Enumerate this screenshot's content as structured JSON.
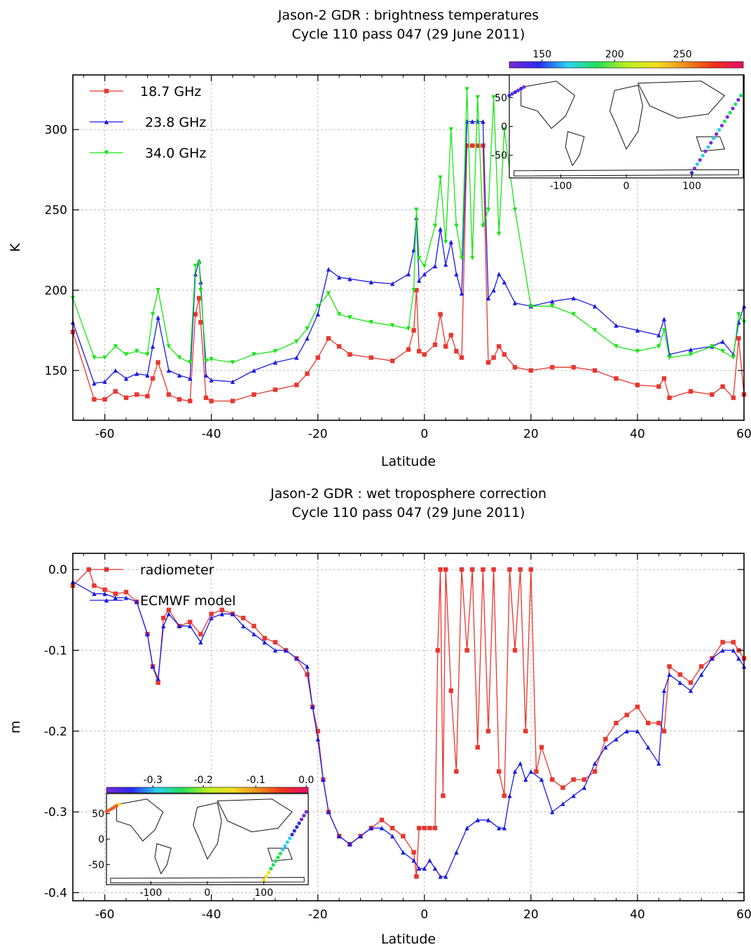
{
  "chart_data": [
    {
      "type": "line",
      "title": "Jason-2 GDR : brightness temperatures",
      "subtitle": "Cycle 110 pass 047 (29 June 2011)",
      "xlabel": "Latitude",
      "ylabel": "K",
      "xlim": [
        -66,
        60
      ],
      "ylim": [
        119,
        334
      ],
      "xticks": [
        -60,
        -40,
        -20,
        0,
        20,
        40,
        60
      ],
      "yticks": [
        150,
        200,
        250,
        300
      ],
      "grid": true,
      "legend_position": "top-left",
      "series": [
        {
          "name": "18.7 GHz",
          "color": "#e8362f",
          "marker": "square",
          "x": [
            -66,
            -62,
            -60,
            -58,
            -56,
            -54,
            -52,
            -51,
            -50,
            -48,
            -46,
            -44,
            -43,
            -42.3,
            -42,
            -41,
            -40,
            -36,
            -32,
            -28,
            -24,
            -22,
            -20,
            -18,
            -16,
            -14,
            -10,
            -6,
            -3,
            -2,
            -1.5,
            -1,
            0,
            2,
            3,
            4,
            5,
            6,
            7,
            8,
            9,
            10,
            11,
            12,
            13,
            14,
            15,
            17,
            20,
            24,
            28,
            32,
            36,
            40,
            44,
            45,
            46,
            50,
            54,
            56,
            58,
            59,
            60
          ],
          "y": [
            174,
            132,
            132,
            137,
            133,
            135,
            134,
            145,
            155,
            135,
            132,
            131,
            185,
            195,
            180,
            133,
            131,
            131,
            135,
            138,
            141,
            148,
            158,
            170,
            165,
            160,
            158,
            156,
            163,
            175,
            200,
            162,
            160,
            166,
            185,
            165,
            172,
            162,
            158,
            290,
            290,
            290,
            290,
            155,
            158,
            165,
            160,
            152,
            150,
            152,
            152,
            150,
            145,
            141,
            140,
            145,
            133,
            137,
            135,
            140,
            133,
            170,
            135
          ]
        },
        {
          "name": "23.8 GHz",
          "color": "#1a1ae6",
          "marker": "triangle",
          "x": [
            -66,
            -62,
            -60,
            -58,
            -56,
            -54,
            -52,
            -51,
            -50,
            -48,
            -46,
            -44,
            -43,
            -42.3,
            -42,
            -41,
            -40,
            -36,
            -32,
            -28,
            -24,
            -22,
            -20,
            -18,
            -16,
            -14,
            -10,
            -6,
            -3,
            -2,
            -1.5,
            -1,
            0,
            2,
            3,
            4,
            5,
            6,
            7,
            8,
            9,
            10,
            11,
            12,
            13,
            14,
            15,
            17,
            20,
            24,
            28,
            32,
            36,
            40,
            44,
            45,
            46,
            50,
            54,
            56,
            58,
            59,
            60
          ],
          "y": [
            180,
            142,
            143,
            150,
            145,
            148,
            147,
            165,
            183,
            150,
            147,
            145,
            210,
            218,
            205,
            147,
            144,
            143,
            150,
            155,
            158,
            170,
            185,
            213,
            208,
            207,
            205,
            204,
            210,
            225,
            245,
            206,
            210,
            215,
            238,
            216,
            230,
            210,
            198,
            305,
            305,
            305,
            305,
            195,
            200,
            210,
            205,
            192,
            190,
            193,
            195,
            190,
            178,
            175,
            172,
            182,
            160,
            163,
            165,
            168,
            160,
            180,
            190
          ]
        },
        {
          "name": "34.0 GHz",
          "color": "#17e614",
          "marker": "triangle-down",
          "x": [
            -66,
            -62,
            -60,
            -58,
            -56,
            -54,
            -52,
            -51,
            -50,
            -48,
            -46,
            -44,
            -43,
            -42.3,
            -42,
            -41,
            -40,
            -36,
            -32,
            -28,
            -24,
            -22,
            -20,
            -18,
            -16,
            -14,
            -10,
            -6,
            -3,
            -2,
            -1.5,
            -1,
            0,
            2,
            3,
            4,
            5,
            6,
            7,
            8,
            9,
            10,
            11,
            12,
            13,
            14,
            15,
            17,
            20,
            24,
            28,
            32,
            36,
            40,
            44,
            45,
            46,
            50,
            54,
            56,
            58,
            59,
            60
          ],
          "y": [
            195,
            158,
            158,
            165,
            160,
            162,
            160,
            185,
            200,
            165,
            158,
            155,
            215,
            217,
            200,
            156,
            157,
            155,
            160,
            162,
            168,
            176,
            190,
            198,
            185,
            183,
            180,
            178,
            176,
            200,
            250,
            220,
            215,
            240,
            270,
            230,
            300,
            240,
            220,
            325,
            220,
            320,
            240,
            250,
            320,
            235,
            300,
            250,
            190,
            190,
            185,
            175,
            165,
            162,
            165,
            175,
            158,
            160,
            165,
            162,
            158,
            185,
            180
          ]
        }
      ],
      "inset": {
        "type": "map",
        "colorbar_ticks": [
          150,
          200,
          250
        ],
        "xticks": [
          -100,
          0,
          100
        ],
        "yticks": [
          50,
          0,
          -50
        ]
      }
    },
    {
      "type": "line",
      "title": "Jason-2 GDR : wet troposphere correction",
      "subtitle": "Cycle 110 pass 047 (29 June 2011)",
      "xlabel": "Latitude",
      "ylabel": "m",
      "xlim": [
        -66,
        60
      ],
      "ylim": [
        -0.41,
        0.02
      ],
      "xticks": [
        -60,
        -40,
        -20,
        0,
        20,
        40,
        60
      ],
      "yticks": [
        0.0,
        -0.1,
        -0.2,
        -0.3,
        -0.4
      ],
      "ytick_labels": [
        "0.0",
        "-0.1",
        "-0.2",
        "-0.3",
        "-0.4"
      ],
      "grid": true,
      "legend_position": "top-left",
      "series": [
        {
          "name": "radiometer",
          "color": "#e8362f",
          "marker": "square",
          "x": [
            -66,
            -63,
            -62,
            -60,
            -58,
            -56,
            -54,
            -52,
            -51,
            -50,
            -49,
            -48,
            -46,
            -44,
            -42,
            -40,
            -38,
            -36,
            -34,
            -32,
            -30,
            -28,
            -26,
            -24,
            -22,
            -21,
            -20,
            -19,
            -18,
            -16,
            -14,
            -12,
            -10,
            -8,
            -6,
            -4,
            -2,
            -1.5,
            -1,
            0,
            1,
            2,
            2.5,
            3,
            3.5,
            4,
            5,
            6,
            7,
            8,
            9,
            10,
            11,
            12,
            13,
            14,
            15,
            16,
            17,
            18,
            19,
            20,
            21,
            22,
            24,
            26,
            28,
            30,
            32,
            34,
            36,
            38,
            40,
            42,
            44,
            45,
            46,
            48,
            50,
            52,
            54,
            56,
            58,
            59,
            60
          ],
          "y": [
            -0.02,
            0.0,
            -0.02,
            -0.025,
            -0.03,
            -0.028,
            -0.04,
            -0.08,
            -0.12,
            -0.14,
            -0.06,
            -0.05,
            -0.07,
            -0.065,
            -0.08,
            -0.055,
            -0.05,
            -0.055,
            -0.06,
            -0.07,
            -0.085,
            -0.09,
            -0.1,
            -0.11,
            -0.13,
            -0.17,
            -0.2,
            -0.26,
            -0.3,
            -0.33,
            -0.34,
            -0.33,
            -0.32,
            -0.31,
            -0.32,
            -0.33,
            -0.35,
            -0.38,
            -0.32,
            -0.32,
            -0.32,
            -0.32,
            -0.1,
            0.0,
            -0.28,
            0.0,
            -0.15,
            -0.25,
            0.0,
            -0.1,
            0.0,
            -0.22,
            0.0,
            -0.2,
            0.0,
            -0.25,
            -0.28,
            0.0,
            -0.1,
            0.0,
            -0.2,
            0.0,
            -0.25,
            -0.22,
            -0.26,
            -0.27,
            -0.26,
            -0.26,
            -0.25,
            -0.21,
            -0.19,
            -0.18,
            -0.17,
            -0.19,
            -0.19,
            -0.2,
            -0.12,
            -0.13,
            -0.14,
            -0.12,
            -0.11,
            -0.09,
            -0.09,
            -0.1,
            -0.11
          ]
        },
        {
          "name": "ECMWF model",
          "color": "#1a1ae6",
          "marker": "triangle",
          "x": [
            -66,
            -62,
            -60,
            -58,
            -56,
            -54,
            -52,
            -51,
            -50,
            -49,
            -48,
            -46,
            -44,
            -42,
            -40,
            -38,
            -36,
            -34,
            -32,
            -30,
            -28,
            -26,
            -24,
            -22,
            -21,
            -20,
            -19,
            -18,
            -16,
            -14,
            -12,
            -10,
            -8,
            -6,
            -4,
            -2,
            -1,
            0,
            1,
            2,
            3,
            4,
            6,
            8,
            10,
            12,
            14,
            15,
            16,
            17,
            18,
            19,
            20,
            22,
            24,
            26,
            28,
            30,
            32,
            34,
            36,
            38,
            40,
            42,
            44,
            45,
            46,
            48,
            50,
            52,
            54,
            56,
            58,
            59,
            60
          ],
          "y": [
            -0.015,
            -0.03,
            -0.03,
            -0.035,
            -0.035,
            -0.04,
            -0.08,
            -0.12,
            -0.135,
            -0.07,
            -0.055,
            -0.07,
            -0.07,
            -0.09,
            -0.06,
            -0.055,
            -0.055,
            -0.07,
            -0.08,
            -0.09,
            -0.1,
            -0.1,
            -0.11,
            -0.12,
            -0.17,
            -0.21,
            -0.26,
            -0.3,
            -0.33,
            -0.34,
            -0.33,
            -0.32,
            -0.32,
            -0.33,
            -0.35,
            -0.36,
            -0.37,
            -0.37,
            -0.36,
            -0.37,
            -0.38,
            -0.38,
            -0.35,
            -0.32,
            -0.31,
            -0.31,
            -0.32,
            -0.32,
            -0.28,
            -0.25,
            -0.24,
            -0.26,
            -0.25,
            -0.26,
            -0.3,
            -0.29,
            -0.28,
            -0.27,
            -0.24,
            -0.22,
            -0.21,
            -0.2,
            -0.2,
            -0.22,
            -0.24,
            -0.15,
            -0.13,
            -0.14,
            -0.15,
            -0.13,
            -0.11,
            -0.1,
            -0.1,
            -0.11,
            -0.12
          ]
        }
      ],
      "inset": {
        "type": "map",
        "colorbar_ticks": [
          "-0.3",
          "-0.2",
          "-0.1",
          "0.0"
        ],
        "xticks": [
          -100,
          0,
          100
        ],
        "yticks": [
          50,
          0,
          -50
        ]
      }
    }
  ]
}
